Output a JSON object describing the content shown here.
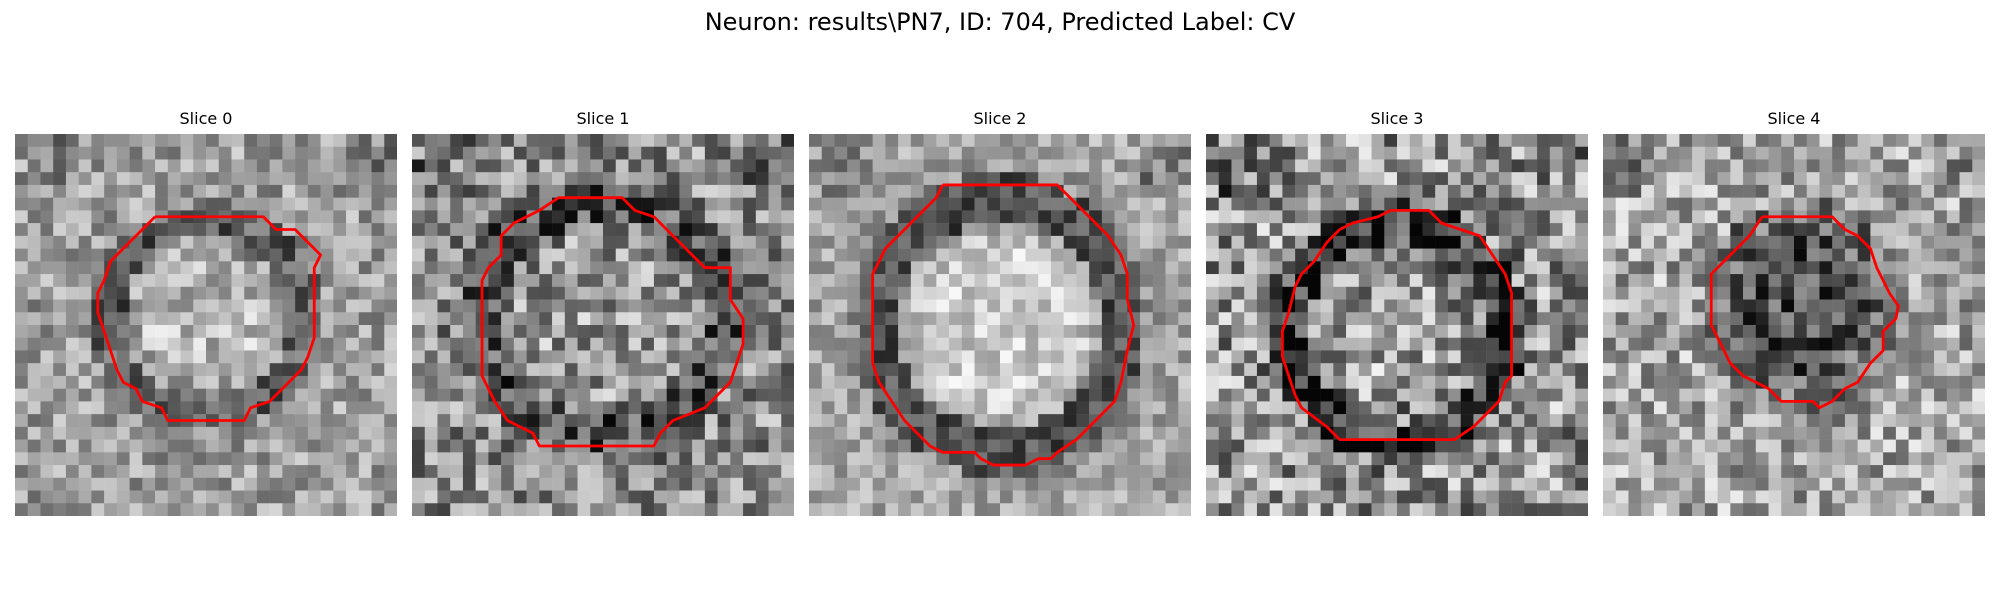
{
  "figure": {
    "title": "Neuron: results\\PN7, ID: 704, Predicted Label: CV"
  },
  "colors": {
    "background": "#ffffff",
    "contour": "#ff0000",
    "cmap": "gray"
  },
  "slices": [
    {
      "title": "Slice 0",
      "pattern": "bright-center-dark-ring"
    },
    {
      "title": "Slice 1",
      "pattern": "mid-center-dark-ring"
    },
    {
      "title": "Slice 2",
      "pattern": "bright-center-dark-ring"
    },
    {
      "title": "Slice 3",
      "pattern": "noisy-dark-ring"
    },
    {
      "title": "Slice 4",
      "pattern": "dark-center-small"
    }
  ]
}
